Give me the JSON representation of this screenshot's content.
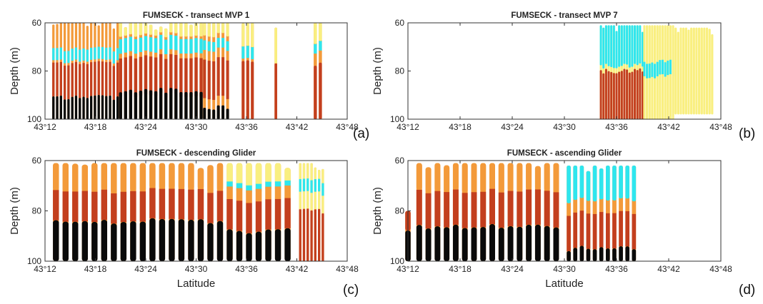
{
  "chart_data": [
    {
      "type": "heatmap",
      "panel_label": "(a)",
      "title": "FUMSECK - transect MVP 1",
      "ylabel": "Depth (m)",
      "xlabel": "",
      "x_ticks": [
        "43°12",
        "43°18",
        "43°24",
        "43°30",
        "43°36",
        "43°42",
        "43°48"
      ],
      "x_tick_minutes": [
        732,
        738,
        744,
        750,
        756,
        762,
        768
      ],
      "xlim_minutes": [
        732,
        768
      ],
      "y_ticks": [
        "60",
        "80",
        "100"
      ],
      "y_tick_values": [
        60,
        80,
        100
      ],
      "ylim": [
        60,
        100
      ],
      "y_inverted": true,
      "colors": {
        "black": "#0a0a0a",
        "red": "#c33f1e",
        "orange": "#f39a3a",
        "yellow": "#f9ef80",
        "cyan": "#2ee6ee"
      },
      "profiles": [
        {
          "from": 733,
          "to": 741,
          "step": 0.45,
          "top": 60,
          "bottom": 100,
          "layers": [
            [
              "cyan",
              71,
              76
            ],
            [
              "red",
              77,
              91
            ],
            [
              "black",
              91,
              100
            ]
          ]
        },
        {
          "from": 741,
          "to": 751,
          "step": 0.6,
          "top": 60,
          "bottom": 100,
          "layers": [
            [
              "yellow",
              60,
              65
            ],
            [
              "cyan",
              66,
              72
            ],
            [
              "red",
              74,
              90
            ],
            [
              "black",
              88,
              100
            ]
          ]
        },
        {
          "from": 751,
          "to": 754,
          "step": 0.55,
          "top": 60,
          "bottom": 100,
          "layers": [
            [
              "yellow",
              60,
              65
            ],
            [
              "cyan",
              67,
              71
            ],
            [
              "red",
              75,
              91
            ],
            [
              "black",
              95,
              100
            ]
          ]
        },
        {
          "from": 755.6,
          "to": 756.8,
          "step": 0.55,
          "top": 60,
          "bottom": 100,
          "layers": [
            [
              "yellow",
              60,
              69
            ],
            [
              "cyan",
              69,
              74
            ],
            [
              "red",
              75,
              100
            ]
          ]
        },
        {
          "from": 759.5,
          "to": 759.9,
          "step": 0.5,
          "top": 62,
          "bottom": 100,
          "layers": [
            [
              "yellow",
              62,
              77
            ],
            [
              "red",
              77,
              100
            ]
          ]
        },
        {
          "from": 764.2,
          "to": 764.8,
          "step": 0.6,
          "top": 60,
          "bottom": 100,
          "layers": [
            [
              "yellow",
              60,
              68
            ],
            [
              "cyan",
              68,
              72
            ],
            [
              "orange",
              72,
              77
            ],
            [
              "red",
              77,
              100
            ]
          ]
        }
      ]
    },
    {
      "type": "heatmap",
      "panel_label": "(b)",
      "title": "FUMSECK - transect MVP 7",
      "ylabel": "Depth (m)",
      "xlabel": "",
      "x_ticks": [
        "43°12",
        "43°18",
        "43°24",
        "43°30",
        "43°36",
        "43°42",
        "43°48"
      ],
      "x_tick_minutes": [
        732,
        738,
        744,
        750,
        756,
        762,
        768
      ],
      "xlim_minutes": [
        732,
        768
      ],
      "y_ticks": [
        "60",
        "80",
        "100"
      ],
      "y_tick_values": [
        60,
        80,
        100
      ],
      "ylim": [
        60,
        100
      ],
      "y_inverted": true,
      "colors": {
        "black": "#0a0a0a",
        "red": "#c33f1e",
        "orange": "#f39a3a",
        "yellow": "#f9ef80",
        "cyan": "#2ee6ee"
      },
      "profiles": [
        {
          "from": 754.2,
          "to": 759.2,
          "step": 0.3,
          "top": 61,
          "bottom": 100,
          "layers": [
            [
              "cyan",
              61,
              78
            ],
            [
              "yellow",
              78,
              81
            ],
            [
              "red",
              80,
              100
            ]
          ]
        },
        {
          "from": 759.2,
          "to": 762.5,
          "step": 0.3,
          "top": 61,
          "bottom": 100,
          "layers": [
            [
              "yellow",
              61,
              100
            ],
            [
              "cyan",
              76,
              82
            ]
          ]
        },
        {
          "from": 762.5,
          "to": 767.2,
          "step": 0.3,
          "top": 62,
          "bottom": 98,
          "layers": [
            [
              "yellow",
              62,
              98
            ]
          ]
        }
      ]
    },
    {
      "type": "heatmap",
      "panel_label": "(c)",
      "title": "FUMSECK - descending Glider",
      "ylabel": "Depth (m)",
      "xlabel": "Latitude",
      "x_ticks": [
        "43°12",
        "43°18",
        "43°24",
        "43°30",
        "43°36",
        "43°42",
        "43°48"
      ],
      "x_tick_minutes": [
        732,
        738,
        744,
        750,
        756,
        762,
        768
      ],
      "xlim_minutes": [
        732,
        768
      ],
      "y_ticks": [
        "60",
        "80",
        "100"
      ],
      "y_tick_values": [
        60,
        80,
        100
      ],
      "ylim": [
        60,
        100
      ],
      "y_inverted": true,
      "colors": {
        "black": "#0a0a0a",
        "red": "#c33f1e",
        "orange": "#f39a3a",
        "yellow": "#f9ef80",
        "cyan": "#2ee6ee"
      },
      "profiles": [
        {
          "from": 733.3,
          "to": 753,
          "step": 1.15,
          "top": 61,
          "bottom": 100,
          "layers": [
            [
              "orange",
              61,
              72
            ],
            [
              "red",
              72,
              84
            ],
            [
              "black",
              84,
              100
            ]
          ]
        },
        {
          "from": 754,
          "to": 761.5,
          "step": 1.15,
          "top": 61,
          "bottom": 100,
          "layers": [
            [
              "yellow",
              61,
              70
            ],
            [
              "cyan",
              69,
              72
            ],
            [
              "orange",
              71,
              76
            ],
            [
              "red",
              76,
              88
            ],
            [
              "black",
              88,
              100
            ]
          ]
        },
        {
          "from": 762.4,
          "to": 765.2,
          "step": 0.45,
          "top": 61,
          "bottom": 100,
          "layers": [
            [
              "yellow",
              61,
              80
            ],
            [
              "cyan",
              68,
              73
            ],
            [
              "red",
              80,
              100
            ]
          ]
        }
      ]
    },
    {
      "type": "heatmap",
      "panel_label": "(d)",
      "title": "FUMSECK - ascending Glider",
      "ylabel": "Depth (m)",
      "xlabel": "Latitude",
      "x_ticks": [
        "43°12",
        "43°18",
        "43°24",
        "43°30",
        "43°36",
        "43°42",
        "43°48"
      ],
      "x_tick_minutes": [
        732,
        738,
        744,
        750,
        756,
        762,
        768
      ],
      "xlim_minutes": [
        732,
        768
      ],
      "y_ticks": [
        "60",
        "80",
        "100"
      ],
      "y_tick_values": [
        60,
        80,
        100
      ],
      "ylim": [
        60,
        100
      ],
      "y_inverted": true,
      "colors": {
        "black": "#0a0a0a",
        "red": "#c33f1e",
        "orange": "#f39a3a",
        "yellow": "#f9ef80",
        "cyan": "#2ee6ee"
      },
      "profiles": [
        {
          "from": 732,
          "to": 732.6,
          "step": 1,
          "top": 80,
          "bottom": 100,
          "layers": [
            [
              "red",
              80,
              88
            ],
            [
              "black",
              88,
              100
            ]
          ]
        },
        {
          "from": 733.3,
          "to": 749.5,
          "step": 1.05,
          "top": 61,
          "bottom": 100,
          "layers": [
            [
              "orange",
              61,
              72
            ],
            [
              "red",
              72,
              86
            ],
            [
              "black",
              86,
              100
            ]
          ]
        },
        {
          "from": 750.5,
          "to": 758.6,
          "step": 0.75,
          "top": 62,
          "bottom": 100,
          "layers": [
            [
              "cyan",
              62,
              76
            ],
            [
              "orange",
              76,
              81
            ],
            [
              "red",
              81,
              95
            ],
            [
              "black",
              95,
              100
            ]
          ]
        }
      ]
    }
  ]
}
